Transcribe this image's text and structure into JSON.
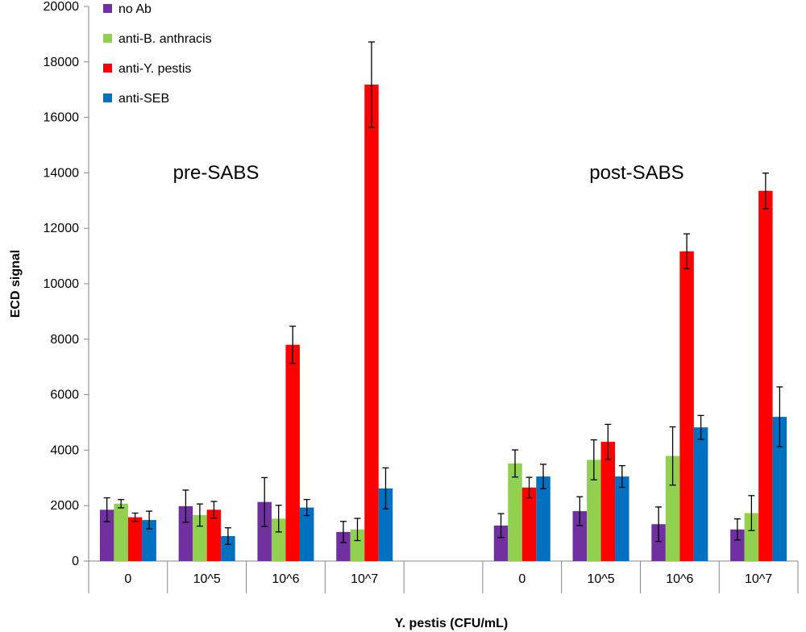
{
  "chart_data": {
    "type": "bar",
    "title": "",
    "xlabel": "Y. pestis (CFU/mL)",
    "ylabel": "ECD signal",
    "ylim": [
      0,
      20000
    ],
    "yticks": [
      0,
      2000,
      4000,
      6000,
      8000,
      10000,
      12000,
      14000,
      16000,
      18000,
      20000
    ],
    "categories": [
      "0",
      "10^5",
      "10^6",
      "10^7",
      "",
      "0",
      "10^5",
      "10^6",
      "10^7"
    ],
    "annotations": [
      {
        "text": "pre-SABS",
        "group": 0
      },
      {
        "text": "post-SABS",
        "group": 1
      }
    ],
    "series": [
      {
        "name": "no Ab",
        "color": "#7030a0",
        "values": [
          1850,
          1980,
          2130,
          1050,
          null,
          1280,
          1800,
          1330,
          1140
        ],
        "errors": [
          430,
          580,
          880,
          380,
          null,
          430,
          520,
          620,
          380
        ]
      },
      {
        "name": "anti-B. anthracis",
        "color": "#92d050",
        "values": [
          2070,
          1660,
          1530,
          1140,
          null,
          3520,
          3650,
          3790,
          1730
        ],
        "errors": [
          150,
          400,
          480,
          400,
          null,
          490,
          720,
          1050,
          630
        ]
      },
      {
        "name": "anti-Y. pestis",
        "color": "#ff0000",
        "values": [
          1580,
          1850,
          7800,
          17180,
          null,
          2650,
          4300,
          11170,
          13350
        ],
        "errors": [
          150,
          300,
          670,
          1540,
          null,
          370,
          630,
          630,
          640
        ]
      },
      {
        "name": "anti-SEB",
        "color": "#0070c0",
        "values": [
          1480,
          900,
          1930,
          2620,
          null,
          3050,
          3050,
          4820,
          5200
        ],
        "errors": [
          320,
          300,
          290,
          740,
          null,
          440,
          390,
          430,
          1080
        ]
      }
    ],
    "legend_position": "top-left"
  }
}
